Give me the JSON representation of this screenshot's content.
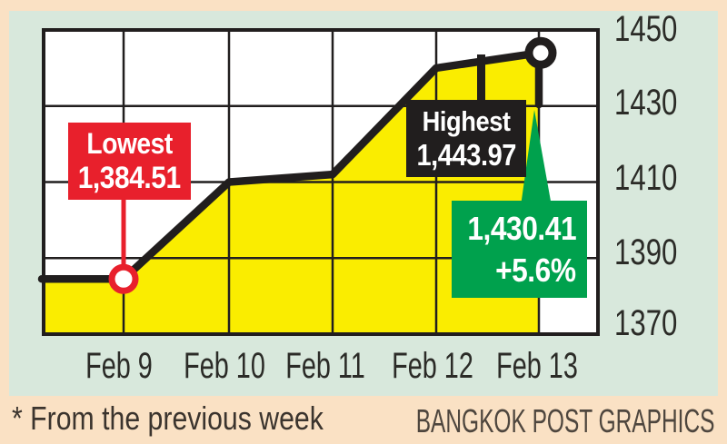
{
  "chart_data": {
    "type": "area",
    "title": "",
    "categories": [
      "Feb 9",
      "Feb 10",
      "Feb 11",
      "Feb 12",
      "Feb 13"
    ],
    "yticks": [
      "1450",
      "1430",
      "1410",
      "1390",
      "1370"
    ],
    "ylim": [
      1370,
      1450
    ],
    "axis_side": "right",
    "grid": true,
    "series": [
      {
        "name": "",
        "values": [
          1384.51,
          1410,
          1412,
          1440,
          1430.41
        ]
      }
    ],
    "line_path": [
      {
        "x": "start",
        "value": 1384.51
      },
      {
        "x": "Feb 9",
        "value": 1384.51
      },
      {
        "x": "Feb 10",
        "value": 1410
      },
      {
        "x": "Feb 11",
        "value": 1412
      },
      {
        "x": "Feb 12",
        "value": 1440
      },
      {
        "x": "Feb 13",
        "value": 1443.97
      },
      {
        "x": "Feb 13",
        "value": 1430.41
      }
    ],
    "annotations": {
      "lowest": {
        "label": "Lowest",
        "value": "1,384.51",
        "day": "Feb 9",
        "numeric": 1384.51
      },
      "highest": {
        "label": "Highest",
        "value": "1,443.97",
        "day": "Feb 13",
        "numeric": 1443.97
      },
      "close": {
        "value": "1,430.41",
        "change": "+5.6%",
        "day": "Feb 13",
        "numeric": 1430.41
      }
    }
  },
  "footer": {
    "footnote": "* From the previous week",
    "credit": "BANGKOK POST GRAPHICS"
  },
  "colors": {
    "page_bg": "#FAE1C4",
    "panel_bg": "#D8E8DC",
    "plot_bg": "#FFFFFF",
    "area_yellow": "#FAED00",
    "line_ink": "#211E1E",
    "lowest_red": "#E8202C",
    "close_green": "#00A14D",
    "axis_text": "#2B2B27"
  }
}
